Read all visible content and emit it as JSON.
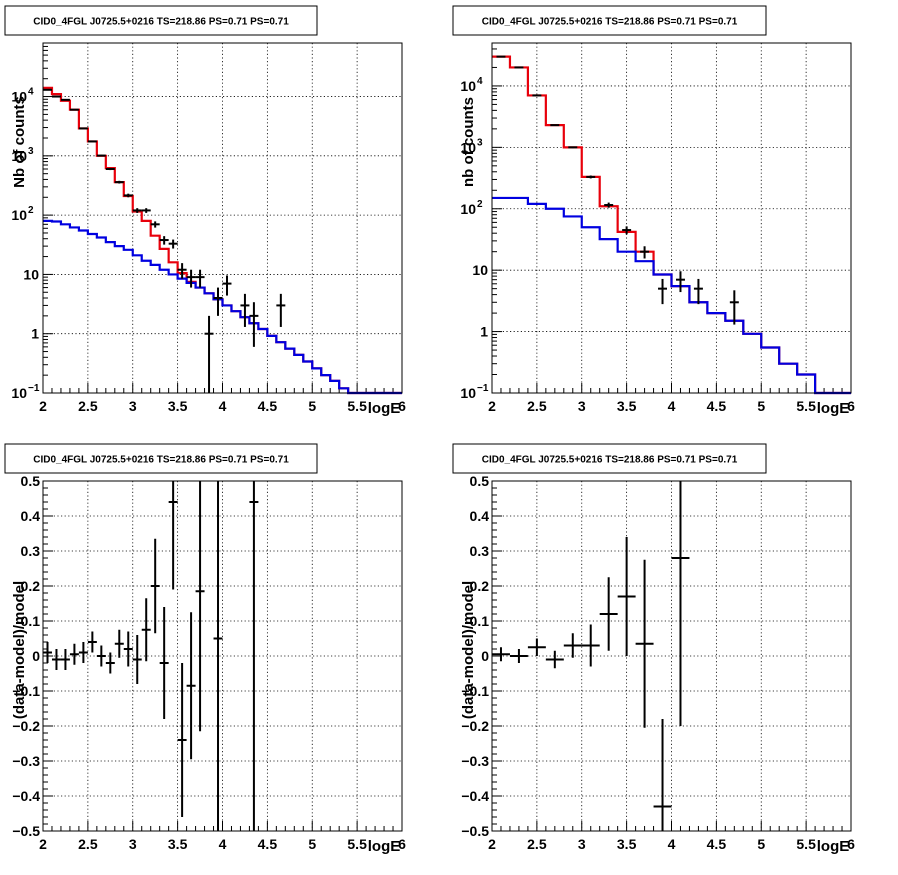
{
  "chart_data": [
    {
      "type": "histogram",
      "title": "CID0_4FGL J0725.5+0216 TS=218.86 PS=0.71 PS=0.71",
      "xlabel": "logE",
      "ylabel": "Nb of counts",
      "xlim": [
        2,
        6
      ],
      "ylim": [
        0.1,
        80000
      ],
      "yscale": "log",
      "grid": true,
      "xticks": [
        "2",
        "2.5",
        "3",
        "3.5",
        "4",
        "4.5",
        "5",
        "5.5",
        "6"
      ],
      "yticks": [
        {
          "value": 0.1,
          "label": "10",
          "sup": "−1"
        },
        {
          "value": 1,
          "label": "1",
          "sup": ""
        },
        {
          "value": 10,
          "label": "10",
          "sup": ""
        },
        {
          "value": 100,
          "label": "10",
          "sup": "2"
        },
        {
          "value": 1000,
          "label": "10",
          "sup": "3"
        },
        {
          "value": 10000,
          "label": "10",
          "sup": "4"
        }
      ],
      "bin_edges": [
        2.0,
        2.1,
        2.2,
        2.3,
        2.4,
        2.5,
        2.6,
        2.7,
        2.8,
        2.9,
        3.0,
        3.1,
        3.2,
        3.3,
        3.4,
        3.5,
        3.6,
        3.7,
        3.8,
        3.9,
        4.0,
        4.1,
        4.2,
        4.3,
        4.4,
        4.5,
        4.6,
        4.7,
        4.8,
        4.9,
        5.0,
        5.1,
        5.2,
        5.3,
        5.4,
        5.5,
        5.6,
        5.7,
        5.8,
        5.9,
        6.0
      ],
      "series": [
        {
          "color": "#e8000b",
          "style": "step",
          "values": [
            14000,
            11000,
            8500,
            6000,
            2900,
            1750,
            1000,
            620,
            360,
            210,
            115,
            80,
            45,
            27,
            16,
            10.5,
            7.5,
            6.0,
            4.8,
            3.8,
            3.0,
            2.4,
            1.9,
            1.5,
            1.2,
            0.92,
            0.72,
            0.56,
            0.44,
            0.34,
            0.26,
            0.2,
            0.16,
            0.12,
            0.1,
            0.1,
            0.1,
            0.1,
            0.1,
            0.1
          ]
        },
        {
          "color": "#0000e0",
          "style": "step",
          "values": [
            80,
            78,
            70,
            62,
            55,
            48,
            42,
            35,
            30,
            26,
            21,
            17,
            14.5,
            12,
            10,
            8.5,
            7.2,
            6.0,
            4.8,
            3.8,
            3.0,
            2.4,
            1.9,
            1.5,
            1.2,
            0.92,
            0.72,
            0.56,
            0.44,
            0.34,
            0.26,
            0.2,
            0.16,
            0.12,
            0.1,
            0.1,
            0.1,
            0.1,
            0.1,
            0.1
          ]
        }
      ],
      "points": [
        {
          "x": 2.05,
          "y": 13000,
          "err": 120
        },
        {
          "x": 2.15,
          "y": 10000,
          "err": 100
        },
        {
          "x": 2.25,
          "y": 8800,
          "err": 94
        },
        {
          "x": 2.35,
          "y": 6000,
          "err": 77
        },
        {
          "x": 2.45,
          "y": 2900,
          "err": 54
        },
        {
          "x": 2.55,
          "y": 1750,
          "err": 42
        },
        {
          "x": 2.65,
          "y": 1010,
          "err": 32
        },
        {
          "x": 2.75,
          "y": 600,
          "err": 25
        },
        {
          "x": 2.85,
          "y": 360,
          "err": 19
        },
        {
          "x": 2.95,
          "y": 215,
          "err": 15
        },
        {
          "x": 3.05,
          "y": 120,
          "err": 11
        },
        {
          "x": 3.15,
          "y": 120,
          "err": 11
        },
        {
          "x": 3.25,
          "y": 70,
          "err": 8.4
        },
        {
          "x": 3.35,
          "y": 38,
          "err": 6.2
        },
        {
          "x": 3.45,
          "y": 33,
          "err": 5.7
        },
        {
          "x": 3.55,
          "y": 12,
          "err": 3.5
        },
        {
          "x": 3.65,
          "y": 9,
          "err": 3
        },
        {
          "x": 3.75,
          "y": 9,
          "err": 3
        },
        {
          "x": 3.85,
          "y": 1,
          "err": 1
        },
        {
          "x": 3.95,
          "y": 4,
          "err": 2
        },
        {
          "x": 4.05,
          "y": 7,
          "err": 2.6
        },
        {
          "x": 4.25,
          "y": 3,
          "err": 1.7
        },
        {
          "x": 4.35,
          "y": 2,
          "err": 1.4
        },
        {
          "x": 4.65,
          "y": 3,
          "err": 1.7
        }
      ]
    },
    {
      "type": "histogram",
      "title": "CID0_4FGL J0725.5+0216 TS=218.86 PS=0.71 PS=0.71",
      "xlabel": "logE",
      "ylabel": "nb of counts",
      "xlim": [
        2,
        6
      ],
      "ylim": [
        0.1,
        50000
      ],
      "yscale": "log",
      "grid": true,
      "xticks": [
        "2",
        "2.5",
        "3",
        "3.5",
        "4",
        "4.5",
        "5",
        "5.5",
        "6"
      ],
      "yticks": [
        {
          "value": 0.1,
          "label": "10",
          "sup": "−1"
        },
        {
          "value": 1,
          "label": "1",
          "sup": ""
        },
        {
          "value": 10,
          "label": "10",
          "sup": ""
        },
        {
          "value": 100,
          "label": "10",
          "sup": "2"
        },
        {
          "value": 1000,
          "label": "10",
          "sup": "3"
        },
        {
          "value": 10000,
          "label": "10",
          "sup": "4"
        }
      ],
      "bin_edges": [
        2.0,
        2.2,
        2.4,
        2.6,
        2.8,
        3.0,
        3.2,
        3.4,
        3.6,
        3.8,
        4.0,
        4.2,
        4.4,
        4.6,
        4.8,
        5.0,
        5.2,
        5.4,
        5.6,
        5.8,
        6.0
      ],
      "series": [
        {
          "color": "#e8000b",
          "style": "step",
          "values": [
            30000,
            20000,
            7000,
            2300,
            1000,
            330,
            110,
            42,
            20,
            8.5,
            5.5,
            3.0,
            2.0,
            1.5,
            0.92,
            0.55,
            0.3,
            0.2,
            0.1,
            0.1
          ]
        },
        {
          "color": "#0000e0",
          "style": "step",
          "values": [
            150,
            150,
            120,
            100,
            75,
            50,
            32,
            20,
            14,
            8.5,
            5.5,
            3.0,
            2.0,
            1.5,
            0.92,
            0.55,
            0.3,
            0.2,
            0.1,
            0.1
          ]
        }
      ],
      "points": [
        {
          "x": 2.1,
          "y": 30000,
          "err": 173
        },
        {
          "x": 2.3,
          "y": 20000,
          "err": 141
        },
        {
          "x": 2.5,
          "y": 7000,
          "err": 84
        },
        {
          "x": 2.7,
          "y": 2300,
          "err": 48
        },
        {
          "x": 2.9,
          "y": 1000,
          "err": 32
        },
        {
          "x": 3.1,
          "y": 330,
          "err": 18
        },
        {
          "x": 3.3,
          "y": 115,
          "err": 11
        },
        {
          "x": 3.5,
          "y": 45,
          "err": 6.7
        },
        {
          "x": 3.7,
          "y": 20,
          "err": 4.5
        },
        {
          "x": 3.9,
          "y": 5,
          "err": 2.2
        },
        {
          "x": 4.1,
          "y": 7,
          "err": 2.6
        },
        {
          "x": 4.3,
          "y": 5,
          "err": 2.2
        },
        {
          "x": 4.7,
          "y": 3,
          "err": 1.7
        }
      ]
    },
    {
      "type": "scatter",
      "title": "CID0_4FGL J0725.5+0216 TS=218.86 PS=0.71 PS=0.71",
      "xlabel": "logE",
      "ylabel": "(data-model)/model",
      "xlim": [
        2,
        6
      ],
      "ylim": [
        -0.5,
        0.5
      ],
      "grid": true,
      "xticks": [
        "2",
        "2.5",
        "3",
        "3.5",
        "4",
        "4.5",
        "5",
        "5.5",
        "6"
      ],
      "yticks": [
        "−0.5",
        "−0.4",
        "−0.3",
        "−0.2",
        "−0.1",
        "0",
        "0.1",
        "0.2",
        "0.3",
        "0.4",
        "0.5"
      ],
      "xerr": 0.05,
      "points": [
        {
          "x": 2.05,
          "y": 0.01,
          "err": 0.03
        },
        {
          "x": 2.15,
          "y": -0.01,
          "err": 0.03
        },
        {
          "x": 2.25,
          "y": -0.01,
          "err": 0.03
        },
        {
          "x": 2.35,
          "y": 0.005,
          "err": 0.03
        },
        {
          "x": 2.45,
          "y": 0.01,
          "err": 0.03
        },
        {
          "x": 2.55,
          "y": 0.04,
          "err": 0.03
        },
        {
          "x": 2.65,
          "y": 0.0,
          "err": 0.03
        },
        {
          "x": 2.75,
          "y": -0.02,
          "err": 0.03
        },
        {
          "x": 2.85,
          "y": 0.035,
          "err": 0.04
        },
        {
          "x": 2.95,
          "y": 0.02,
          "err": 0.05
        },
        {
          "x": 3.05,
          "y": -0.01,
          "err": 0.07
        },
        {
          "x": 3.15,
          "y": 0.075,
          "err": 0.09
        },
        {
          "x": 3.25,
          "y": 0.2,
          "err": 0.135
        },
        {
          "x": 3.35,
          "y": -0.02,
          "err": 0.16
        },
        {
          "x": 3.45,
          "y": 0.44,
          "err": 0.25
        },
        {
          "x": 3.55,
          "y": -0.24,
          "err": 0.22
        },
        {
          "x": 3.65,
          "y": -0.085,
          "err": 0.21
        },
        {
          "x": 3.75,
          "y": 0.185,
          "err": 0.4
        },
        {
          "x": 3.95,
          "y": 0.05,
          "err": 0.6
        },
        {
          "x": 4.35,
          "y": 0.44,
          "err": 1.1
        }
      ]
    },
    {
      "type": "scatter",
      "title": "CID0_4FGL J0725.5+0216 TS=218.86 PS=0.71 PS=0.71",
      "xlabel": "logE",
      "ylabel": "(data-model)/model",
      "xlim": [
        2,
        6
      ],
      "ylim": [
        -0.5,
        0.5
      ],
      "grid": true,
      "xticks": [
        "2",
        "2.5",
        "3",
        "3.5",
        "4",
        "4.5",
        "5",
        "5.5",
        "6"
      ],
      "yticks": [
        "−0.5",
        "−0.4",
        "−0.3",
        "−0.2",
        "−0.1",
        "0",
        "0.1",
        "0.2",
        "0.3",
        "0.4",
        "0.5"
      ],
      "xerr": 0.1,
      "points": [
        {
          "x": 2.1,
          "y": 0.005,
          "err": 0.02
        },
        {
          "x": 2.3,
          "y": 0.0,
          "err": 0.02
        },
        {
          "x": 2.5,
          "y": 0.025,
          "err": 0.025
        },
        {
          "x": 2.7,
          "y": -0.01,
          "err": 0.025
        },
        {
          "x": 2.9,
          "y": 0.03,
          "err": 0.035
        },
        {
          "x": 3.1,
          "y": 0.03,
          "err": 0.06
        },
        {
          "x": 3.3,
          "y": 0.12,
          "err": 0.105
        },
        {
          "x": 3.5,
          "y": 0.17,
          "err": 0.17
        },
        {
          "x": 3.7,
          "y": 0.035,
          "err": 0.24
        },
        {
          "x": 3.9,
          "y": -0.43,
          "err": 0.25
        },
        {
          "x": 4.1,
          "y": 0.28,
          "err": 0.48
        }
      ]
    }
  ]
}
